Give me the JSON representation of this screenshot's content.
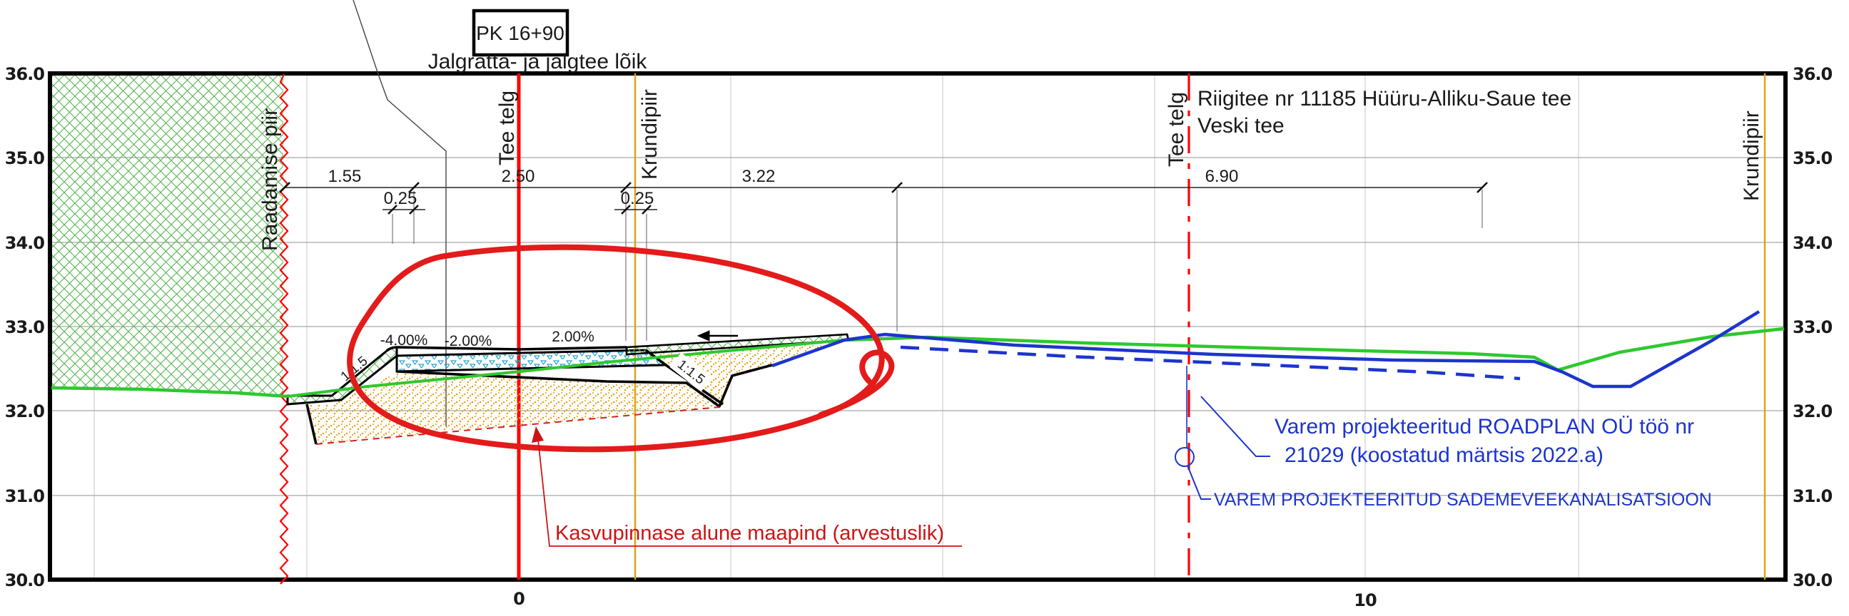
{
  "station_box": {
    "label": "PK 16+90"
  },
  "headers": {
    "section_title": "Jalgratta- ja jalgtee lõik",
    "road_title_line1": "Riigitee nr 11185 Hüüru-Alliku-Saue tee",
    "road_title_line2": "Veski tee"
  },
  "boundaries": {
    "clearing_limit": "Raadamise piir",
    "road_axis_left": "Tee telg",
    "property_line_left": "Krundipiir",
    "road_axis_right": "Tee telg",
    "property_line_right": "Krundipiir"
  },
  "dimensions": {
    "d1": "1.55",
    "d1b": "0.25",
    "d2": "2.50",
    "d2b": "0.25",
    "d3": "3.22",
    "d4": "6.90"
  },
  "slopes": {
    "left_shoulder": "-4.00%",
    "left_lane": "-2.00%",
    "right_lane": "2.00%",
    "left_batter": "1:1.5",
    "right_batter": "1:1.5"
  },
  "annotations": {
    "subsoil_note": "Kasvupinnase alune maapind (arvestuslik)",
    "prev_design_line1": "Varem projekteeritud ROADPLAN OÜ töö nr",
    "prev_design_line2": "21029 (koostatud märtsis 2022.a)",
    "prev_sewer": "VAREM PROJEKTEERITUD SADEMEVEEKANALISATSIOON"
  },
  "axis": {
    "y_labels_left": [
      "36.0",
      "35.0",
      "34.0",
      "33.0",
      "32.0",
      "31.0",
      "30.0"
    ],
    "y_labels_right": [
      "36.0",
      "35.0",
      "34.0",
      "33.0",
      "32.0",
      "31.0",
      "30.0"
    ],
    "x_labels": [
      "0",
      "10"
    ],
    "y_min": 30.0,
    "y_max": 36.0
  },
  "colors": {
    "accent_red": "#e32017",
    "boundary_orange": "#d9a514",
    "design_blue": "#1d35cc",
    "ground_green": "#2ec82e"
  }
}
